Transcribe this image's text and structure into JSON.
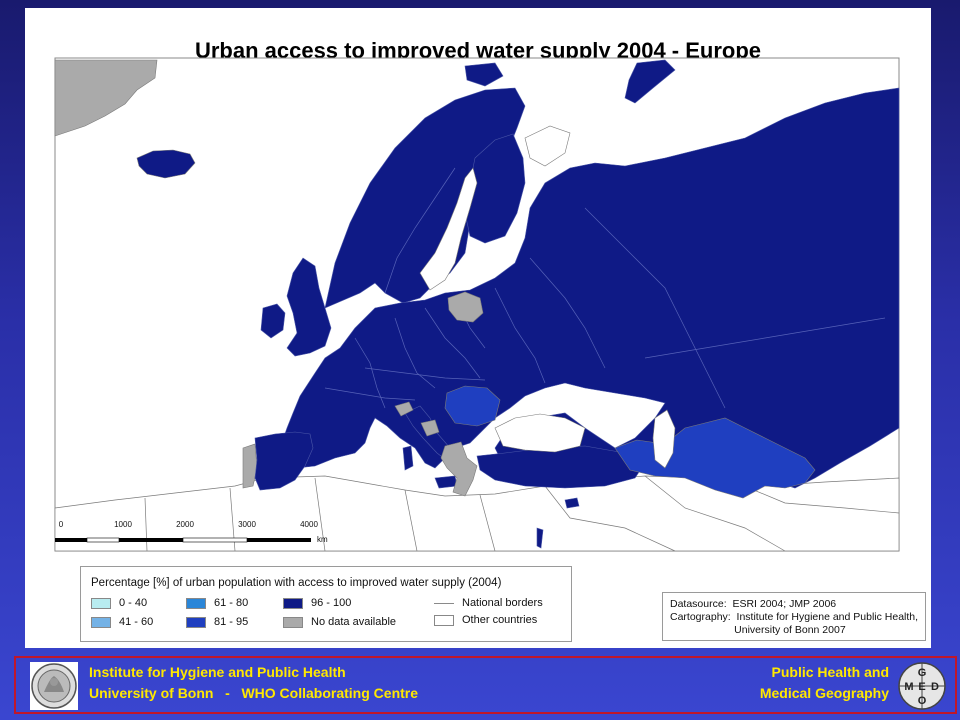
{
  "title": "Urban access to improved water supply 2004 - Europe",
  "colors": {
    "background_top": "#191a6e",
    "background_bottom": "#3a46d0",
    "sea": "#ffffff",
    "class_96_100": "#0f1a86",
    "class_81_95": "#1f3fc0",
    "class_61_80": "#2a86d8",
    "class_41_60": "#74b2e6",
    "class_0_40": "#b8ecf0",
    "no_data": "#aaaaaa",
    "other_countries": "#ffffff",
    "border": "#7a7a7a",
    "footer_text": "#ffe800",
    "footer_border": "#c0172a"
  },
  "map": {
    "no_data_regions": [
      "Greenland",
      "Lithuania",
      "Slovenia",
      "Bosnia",
      "Macedonia",
      "Greece",
      "Portugal"
    ],
    "class_81_95_regions": [
      "Romania",
      "Kazakhstan"
    ],
    "scale_bar": {
      "ticks": [
        "0",
        "1000",
        "2000",
        "3000",
        "4000"
      ],
      "unit": "km"
    }
  },
  "legend": {
    "heading": "Percentage [%] of urban population with access to improved water supply (2004)",
    "items": [
      {
        "label": "0 - 40",
        "color": "#b8ecf0"
      },
      {
        "label": "41 - 60",
        "color": "#74b2e6"
      },
      {
        "label": "61 - 80",
        "color": "#2a86d8"
      },
      {
        "label": "81 - 95",
        "color": "#1f3fc0"
      },
      {
        "label": "96 - 100",
        "color": "#0f1a86"
      },
      {
        "label": "No data available",
        "color": "#aaaaaa"
      }
    ],
    "national_borders": "National borders",
    "other_countries": "Other countries"
  },
  "source": {
    "line1": "Datasource:  ESRI 2004; JMP 2006",
    "line2": "Cartography:  Institute for Hygiene and Public Health,",
    "line3": "                      University of Bonn 2007"
  },
  "footer": {
    "left_line1": "Institute for Hygiene and Public Health",
    "left_line2": "University of Bonn   -   WHO Collaborating Centre",
    "right_line1": "Public Health and",
    "right_line2": "Medical Geography",
    "logo_letters": [
      "G",
      "E",
      "M",
      "D",
      "O"
    ]
  }
}
